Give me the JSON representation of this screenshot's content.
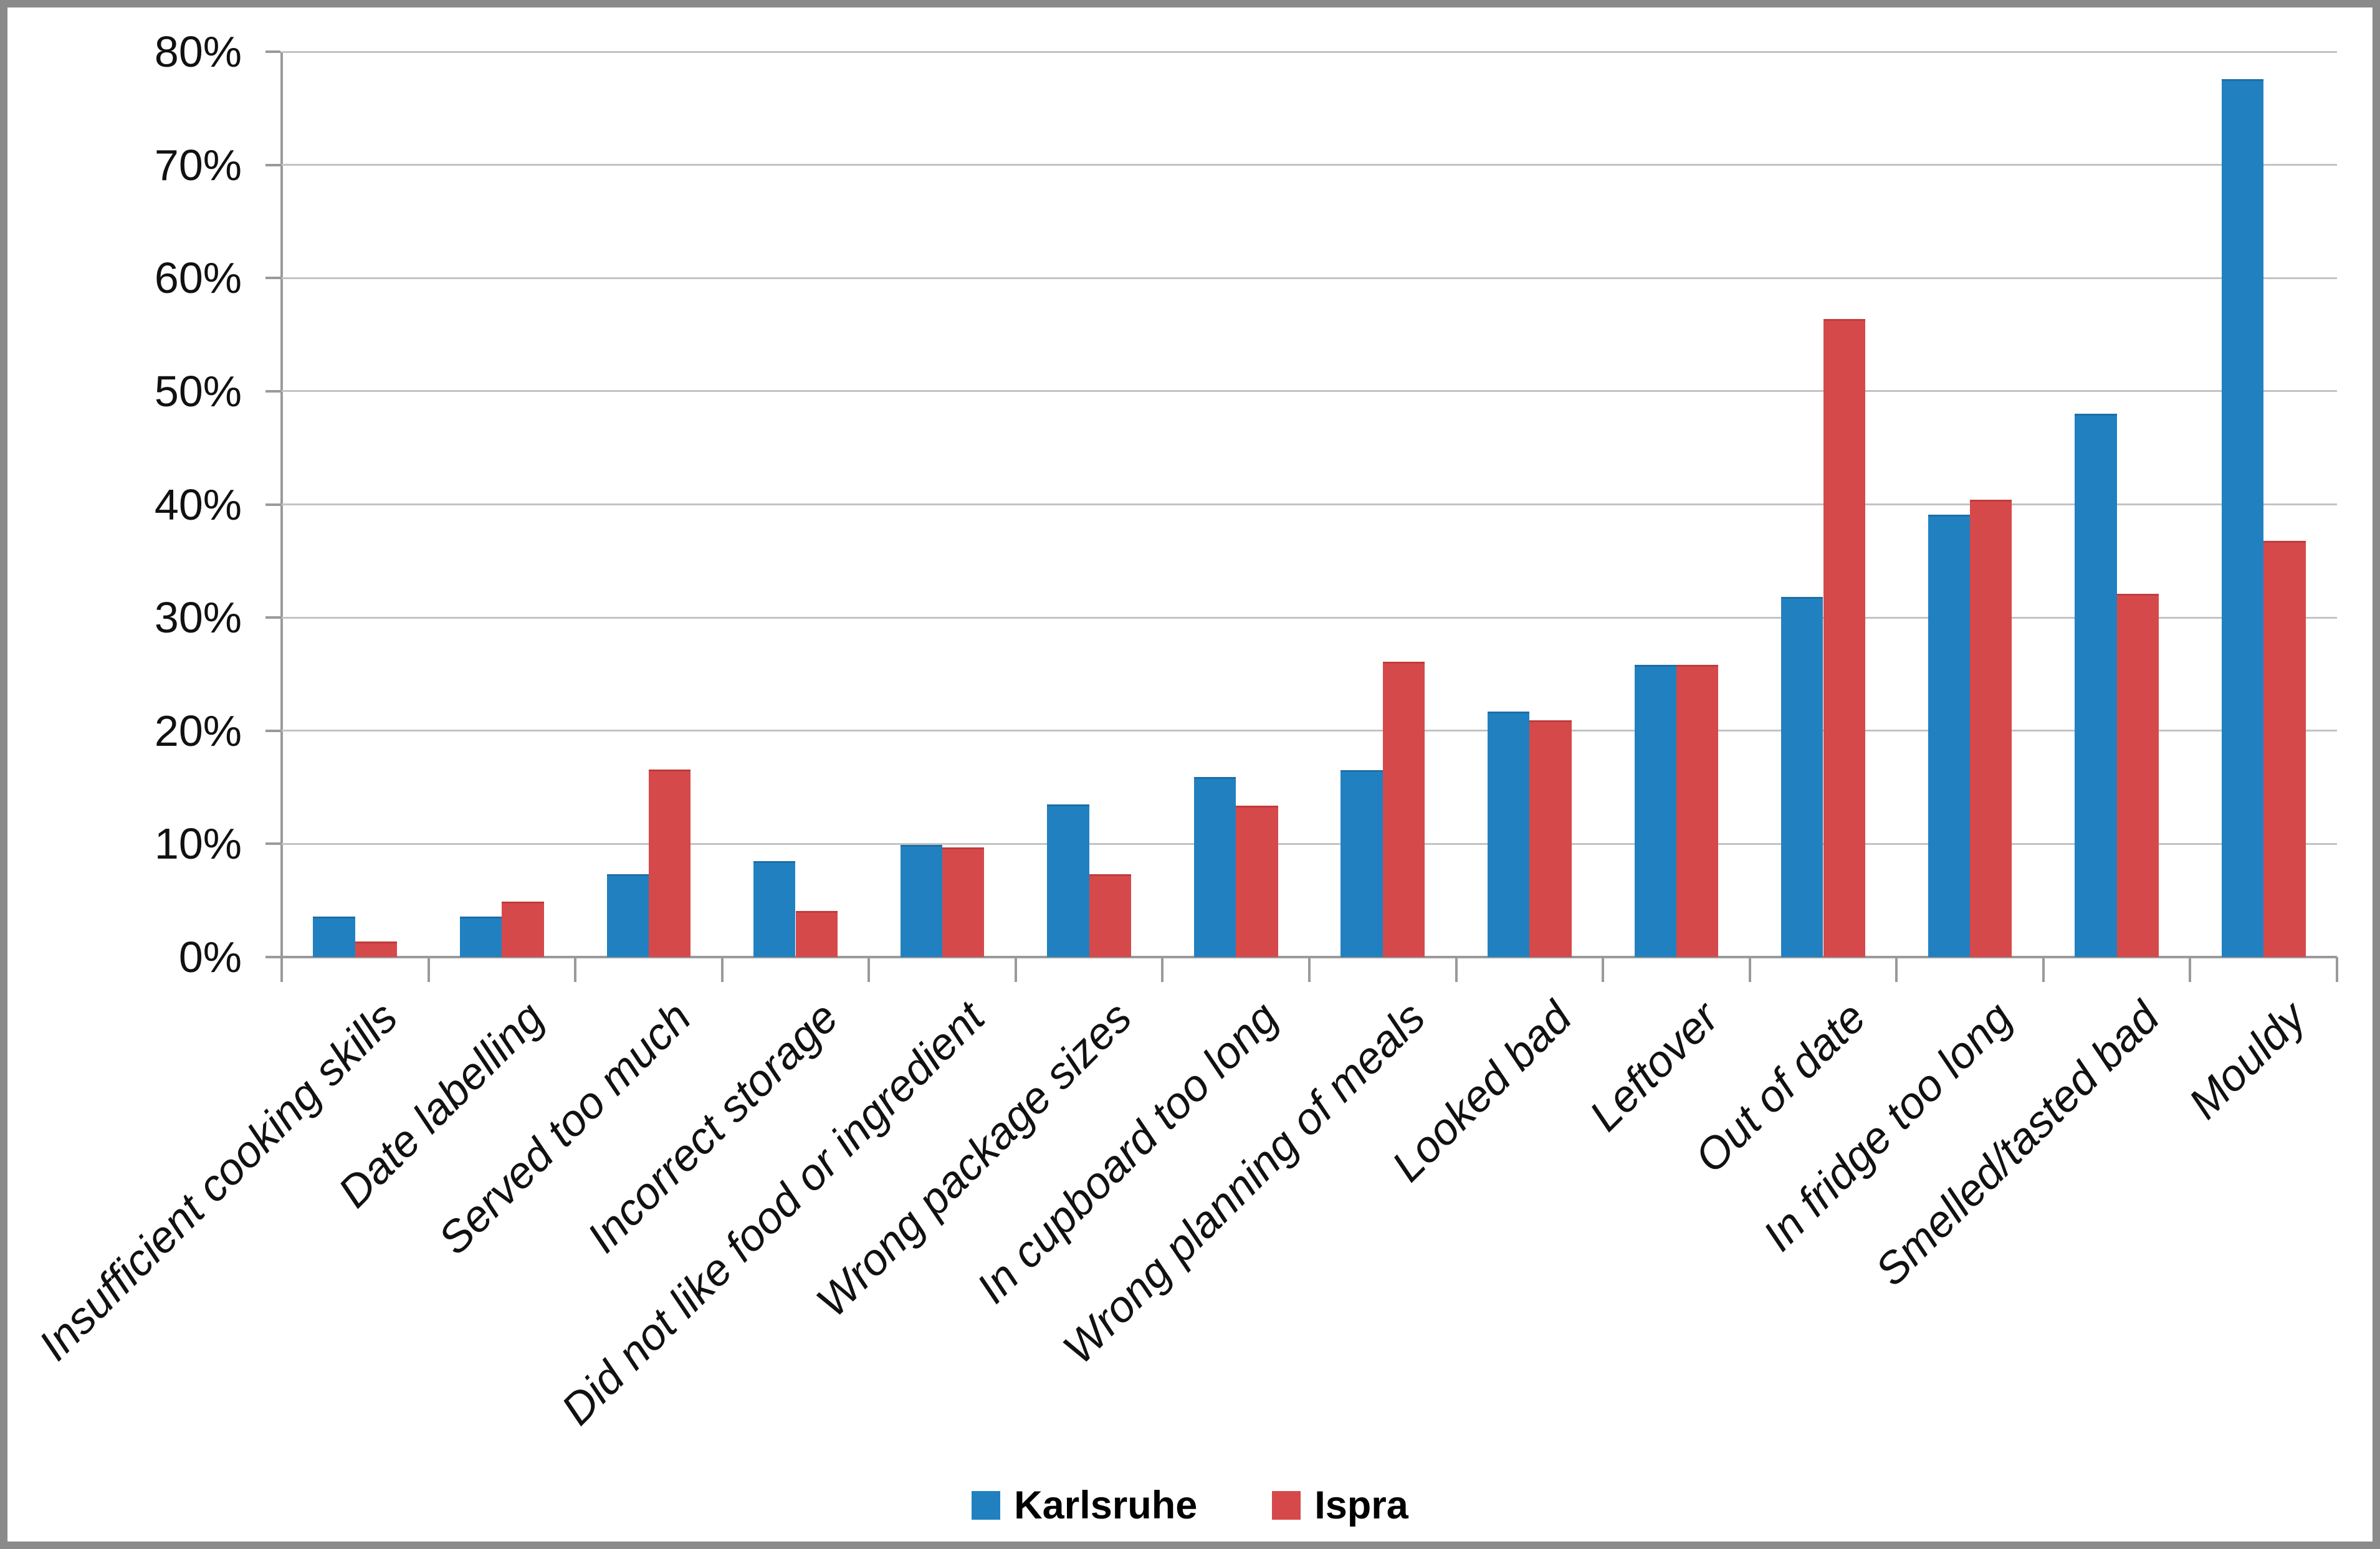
{
  "chart_data": {
    "type": "bar",
    "title": "",
    "xlabel": "",
    "ylabel": "",
    "ylim": [
      0,
      80
    ],
    "ytick_step": 10,
    "ytick_labels": [
      "0%",
      "10%",
      "20%",
      "30%",
      "40%",
      "50%",
      "60%",
      "70%",
      "80%"
    ],
    "grid": true,
    "legend_position": "bottom",
    "categories": [
      "Insufficient cooking skills",
      "Date labelling",
      "Served too much",
      "Incorrect storage",
      "Did not like food or ingredient",
      "Wrong package sizes",
      "In cupboard too long",
      "Wrong planning of meals",
      "Looked bad",
      "Leftover",
      "Out of date",
      "In fridge too long",
      "Smelled/tasted bad",
      "Mouldy"
    ],
    "series": [
      {
        "name": "Karlsruhe",
        "color": "#2181c0",
        "edge_color": "#1c6fa8",
        "values": [
          3.6,
          3.6,
          7.3,
          8.5,
          9.9,
          13.5,
          15.9,
          16.5,
          21.7,
          25.8,
          31.8,
          39.1,
          48.0,
          77.6
        ]
      },
      {
        "name": "Ispra",
        "color": "#d6494b",
        "edge_color": "#c03c3e",
        "values": [
          1.4,
          4.9,
          16.6,
          4.1,
          9.7,
          7.3,
          13.4,
          26.1,
          20.9,
          25.8,
          56.4,
          40.4,
          32.1,
          36.8
        ]
      }
    ]
  },
  "colors": {
    "background": "#ffffff",
    "frame_border": "#8a8a8a",
    "gridline": "#c3c3c3",
    "axis": "#9a9a9a",
    "text": "#111111"
  }
}
